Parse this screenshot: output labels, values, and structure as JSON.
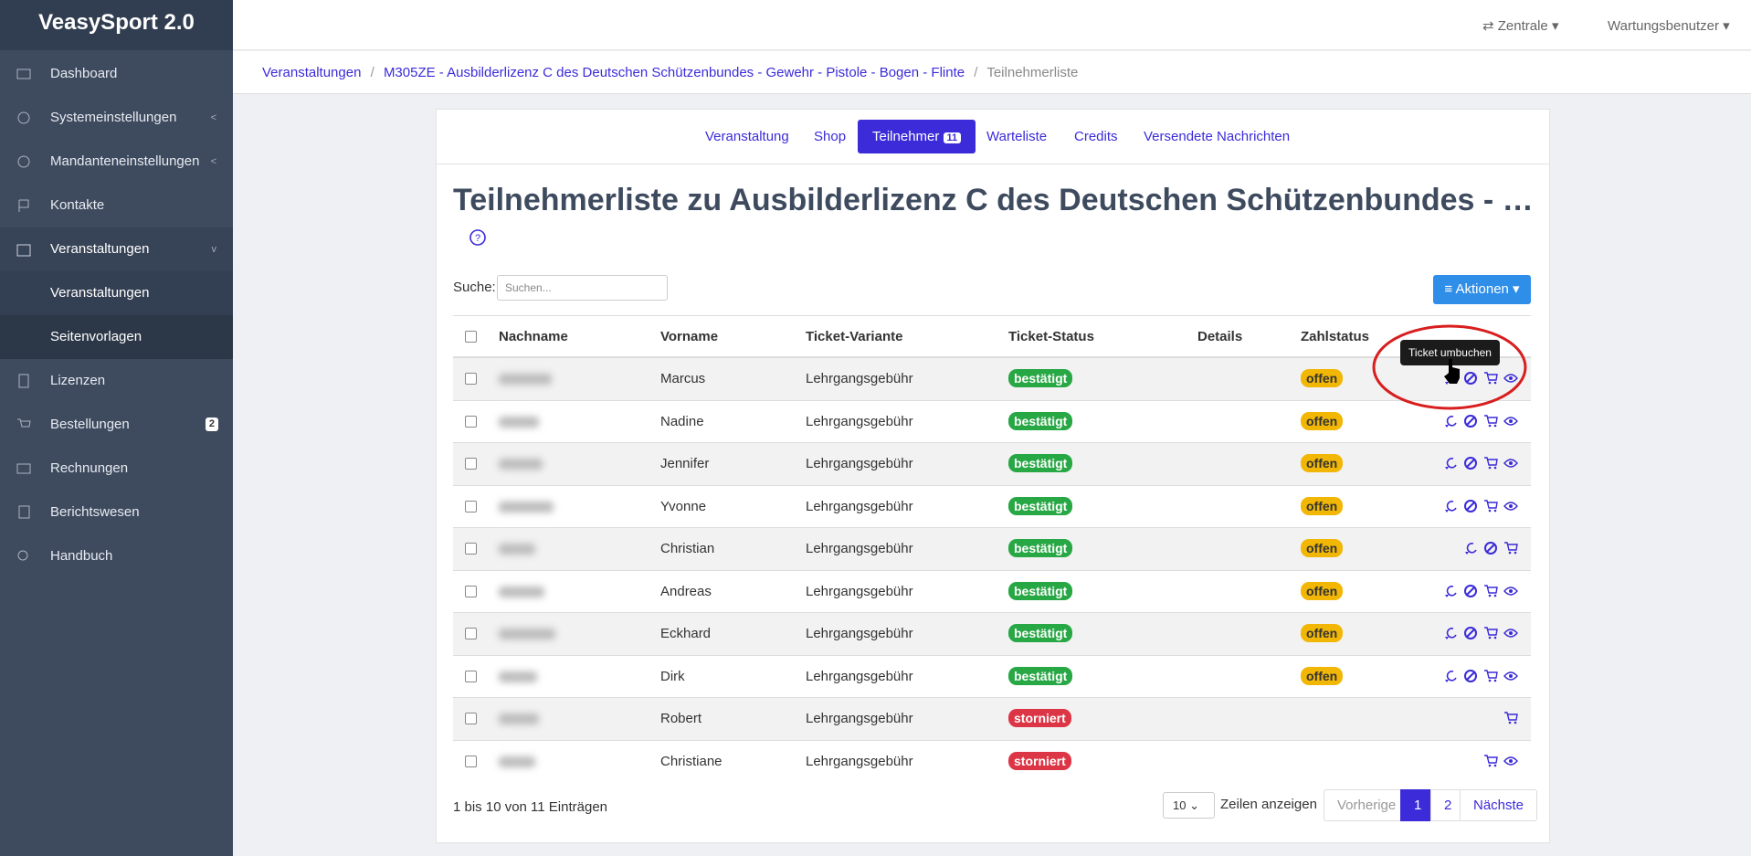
{
  "sidebar": {
    "brand": "VeasySport 2.0",
    "items": [
      "Dashboard",
      "Systemeinstellungen",
      "Mandanteneinstellungen",
      "Kontakte",
      "Veranstaltungen",
      "Veranstaltungen",
      "Seitenvorlagen",
      "Lizenzen",
      "Bestellungen",
      "Rechnungen",
      "Berichtswesen",
      "Handbuch"
    ],
    "bestellungen_badge": "2"
  },
  "topbar": {
    "location": "Zentrale",
    "user": "Wartungsbenutzer"
  },
  "breadcrumb": [
    "Veranstaltungen",
    "M305ZE - Ausbilderlizenz C des Deutschen Schützenbundes - Gewehr - Pistole - Bogen - Flinte",
    "Teilnehmerliste"
  ],
  "tabs": [
    "Veranstaltung",
    "Shop",
    "Teilnehmer",
    "Warteliste",
    "Credits",
    "Versendete Nachrichten"
  ],
  "teilnehmer_count": "11",
  "title": "Teilnehmerliste zu Ausbilderlizenz C des Deutschen Schützenbundes - …",
  "search": {
    "label": "Suche:",
    "placeholder": "Suchen..."
  },
  "actions_button": "Aktionen",
  "table": {
    "headers": [
      "Nachname",
      "Vorname",
      "Ticket-Variante",
      "Ticket-Status",
      "Details",
      "Zahlstatus"
    ],
    "rows": [
      {
        "vorname": "Marcus",
        "ticket_variante": "Lehrgangsgebühr",
        "ticket_status": "bestätigt",
        "zahlstatus": "offen"
      },
      {
        "vorname": "Nadine",
        "ticket_variante": "Lehrgangsgebühr",
        "ticket_status": "bestätigt",
        "zahlstatus": "offen"
      },
      {
        "vorname": "Jennifer",
        "ticket_variante": "Lehrgangsgebühr",
        "ticket_status": "bestätigt",
        "zahlstatus": "offen"
      },
      {
        "vorname": "Yvonne",
        "ticket_variante": "Lehrgangsgebühr",
        "ticket_status": "bestätigt",
        "zahlstatus": "offen"
      },
      {
        "vorname": "Christian",
        "ticket_variante": "Lehrgangsgebühr",
        "ticket_status": "bestätigt",
        "zahlstatus": "offen"
      },
      {
        "vorname": "Andreas",
        "ticket_variante": "Lehrgangsgebühr",
        "ticket_status": "bestätigt",
        "zahlstatus": "offen"
      },
      {
        "vorname": "Eckhard",
        "ticket_variante": "Lehrgangsgebühr",
        "ticket_status": "bestätigt",
        "zahlstatus": "offen"
      },
      {
        "vorname": "Dirk",
        "ticket_variante": "Lehrgangsgebühr",
        "ticket_status": "bestätigt",
        "zahlstatus": "offen"
      },
      {
        "vorname": "Robert",
        "ticket_variante": "Lehrgangsgebühr",
        "ticket_status": "storniert"
      },
      {
        "vorname": "Christiane",
        "ticket_variante": "Lehrgangsgebühr",
        "ticket_status": "storniert"
      }
    ]
  },
  "tooltip": "Ticket umbuchen",
  "footer": {
    "info": "1 bis 10 von 11 Einträgen",
    "page_size": "10",
    "page_size_label": "Zeilen anzeigen",
    "pagination": [
      "Vorherige",
      "1",
      "2",
      "Nächste"
    ]
  }
}
